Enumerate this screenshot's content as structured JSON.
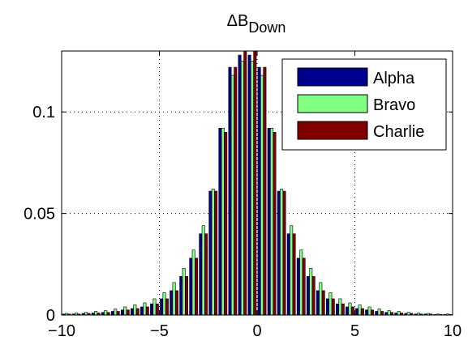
{
  "chart_data": {
    "type": "bar",
    "title": "ΔB",
    "title_subscript": "Down",
    "xlabel": "",
    "ylabel": "",
    "xlim": [
      -10,
      10
    ],
    "ylim": [
      0,
      0.13
    ],
    "xticks": [
      -10,
      -5,
      0,
      5,
      10
    ],
    "xtick_labels": [
      "−10",
      "−5",
      "0",
      "5",
      "10"
    ],
    "yticks": [
      0,
      0.05,
      0.1
    ],
    "ytick_labels": [
      "0",
      "0.05",
      "0.1"
    ],
    "grid": true,
    "legend_position": "top-right",
    "x": [
      -9.75,
      -9.25,
      -8.75,
      -8.25,
      -7.75,
      -7.25,
      -6.75,
      -6.25,
      -5.75,
      -5.25,
      -4.75,
      -4.25,
      -3.75,
      -3.25,
      -2.75,
      -2.25,
      -1.75,
      -1.25,
      -0.75,
      -0.25,
      0.25,
      0.75,
      1.25,
      1.75,
      2.25,
      2.75,
      3.25,
      3.75,
      4.25,
      4.75,
      5.25,
      5.75,
      6.25,
      6.75,
      7.25,
      7.75,
      8.25,
      8.75,
      9.25,
      9.75
    ],
    "series": [
      {
        "name": "Alpha",
        "color": "#00008f",
        "values": [
          0.0005,
          0.0005,
          0.0008,
          0.001,
          0.0013,
          0.0018,
          0.0025,
          0.0032,
          0.004,
          0.0055,
          0.008,
          0.012,
          0.019,
          0.028,
          0.04,
          0.061,
          0.092,
          0.122,
          0.128,
          0.128,
          0.122,
          0.092,
          0.061,
          0.04,
          0.028,
          0.019,
          0.012,
          0.008,
          0.0055,
          0.004,
          0.0032,
          0.0025,
          0.0018,
          0.0013,
          0.001,
          0.0008,
          0.0005,
          0.0005,
          0.0003,
          0.0003
        ]
      },
      {
        "name": "Bravo",
        "color": "#80ff80",
        "values": [
          0.0008,
          0.001,
          0.0013,
          0.0018,
          0.0022,
          0.003,
          0.004,
          0.005,
          0.006,
          0.008,
          0.011,
          0.016,
          0.023,
          0.032,
          0.044,
          0.062,
          0.092,
          0.118,
          0.125,
          0.125,
          0.118,
          0.092,
          0.062,
          0.044,
          0.032,
          0.023,
          0.016,
          0.011,
          0.008,
          0.006,
          0.005,
          0.004,
          0.003,
          0.0022,
          0.0018,
          0.0013,
          0.001,
          0.0008,
          0.0005,
          0.0005
        ]
      },
      {
        "name": "Charlie",
        "color": "#800000",
        "values": [
          0.0005,
          0.0005,
          0.0008,
          0.001,
          0.0013,
          0.0018,
          0.0025,
          0.0032,
          0.004,
          0.0055,
          0.008,
          0.012,
          0.019,
          0.028,
          0.04,
          0.061,
          0.09,
          0.122,
          0.13,
          0.13,
          0.122,
          0.09,
          0.061,
          0.04,
          0.028,
          0.019,
          0.012,
          0.008,
          0.0055,
          0.004,
          0.0032,
          0.0025,
          0.0018,
          0.0013,
          0.001,
          0.0008,
          0.0005,
          0.0005,
          0.0003,
          0.0003
        ]
      }
    ]
  }
}
